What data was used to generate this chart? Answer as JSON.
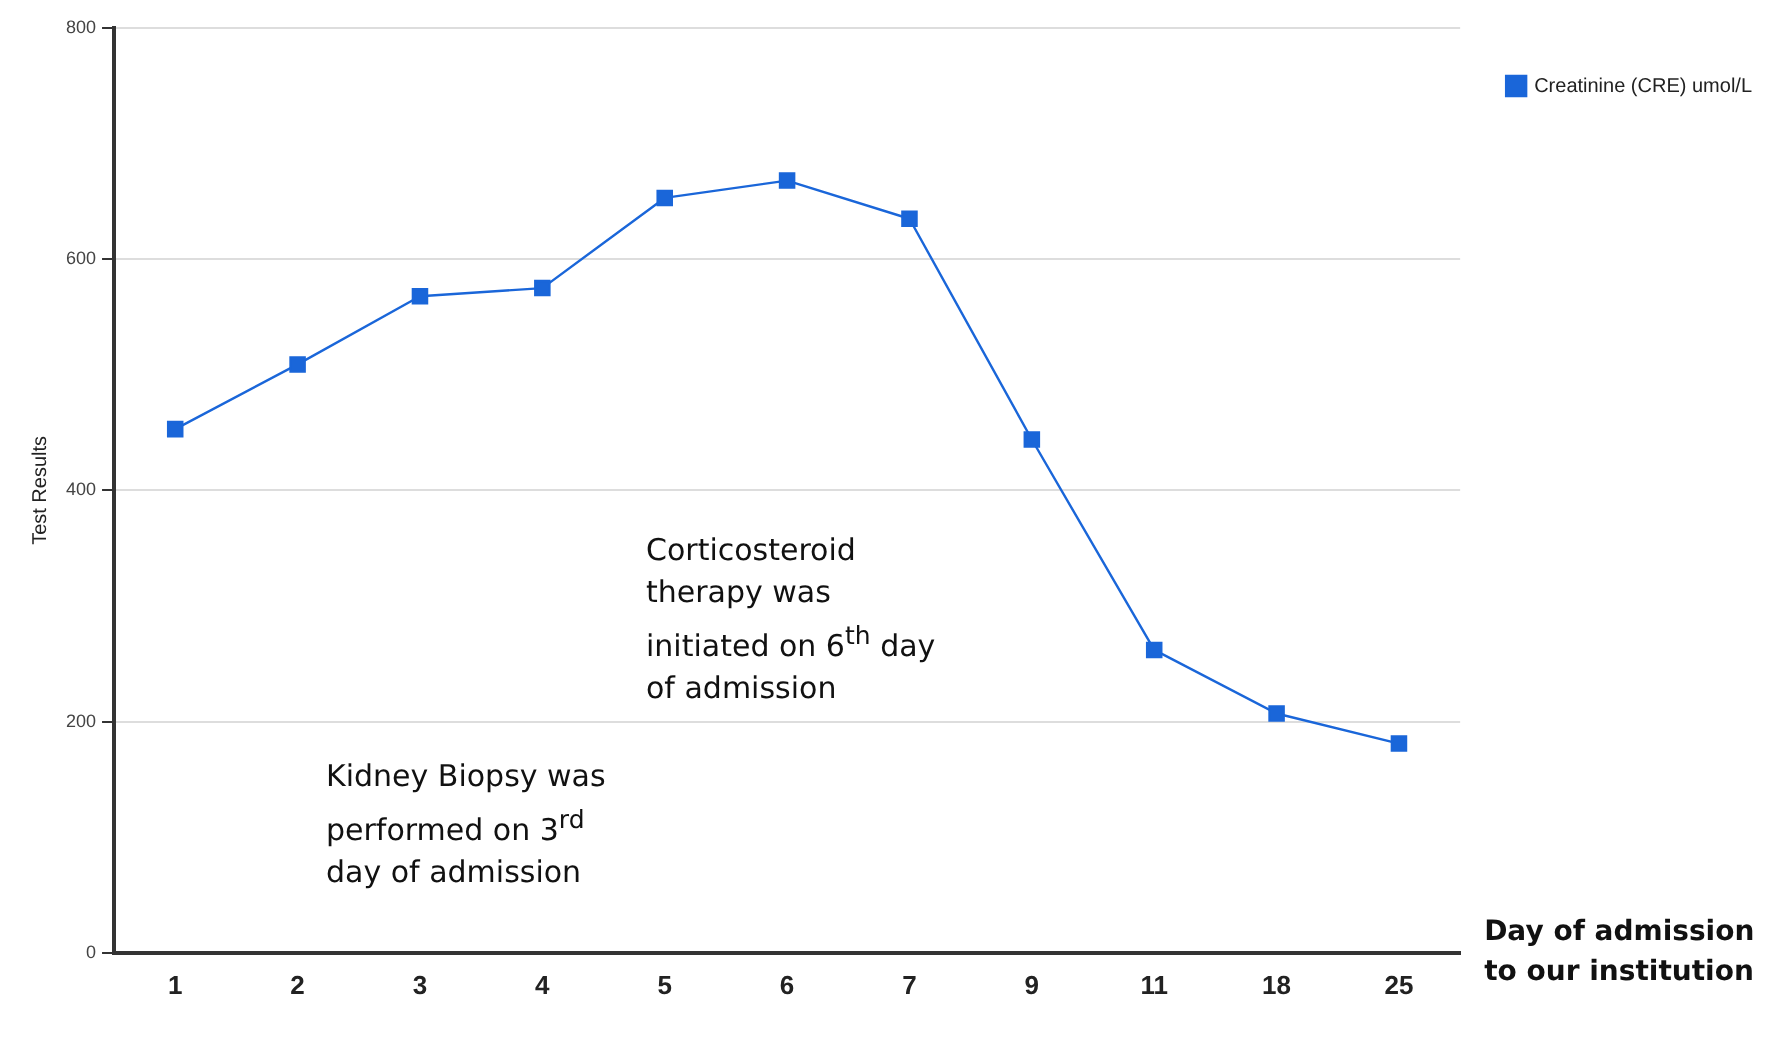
{
  "chart_data": {
    "type": "line",
    "ylabel": "Test Results",
    "xlabel": "Day of admission\nto our institution",
    "categories": [
      "1",
      "2",
      "3",
      "4",
      "5",
      "6",
      "7",
      "9",
      "11",
      "18",
      "25"
    ],
    "series": [
      {
        "name": "Creatinine (CRE) umol/L",
        "color": "#1a66d9",
        "values": [
          453,
          509,
          568,
          575,
          653,
          668,
          635,
          444,
          262,
          207,
          181
        ]
      }
    ],
    "ylim": [
      0,
      800
    ],
    "yticks": [
      0,
      200,
      400,
      600,
      800
    ],
    "grid": "y",
    "legend": "top right",
    "marker": "square",
    "line_style": "solid",
    "annotations": [
      "Corticosteroid therapy was initiated on 6$^{th}$ day of admission",
      "Kidney Biopsy was performed on 3$^{rd}$ day of admission"
    ]
  }
}
